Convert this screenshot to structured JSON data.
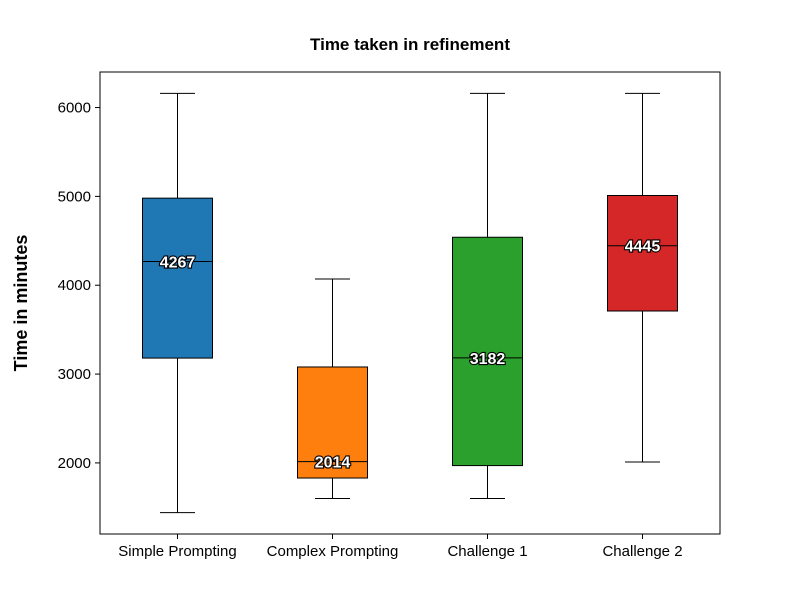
{
  "chart_data": {
    "type": "box",
    "title": "Time taken in refinement",
    "xlabel": "",
    "ylabel": "Time in minutes",
    "ylim": [
      1200,
      6400
    ],
    "yticks": [
      2000,
      3000,
      4000,
      5000,
      6000
    ],
    "grid": false,
    "categories": [
      "Simple Prompting",
      "Complex Prompting",
      "Challenge 1",
      "Challenge 2"
    ],
    "series": [
      {
        "category": "Simple Prompting",
        "min": 1440,
        "q1": 3180,
        "median": 4267,
        "q3": 4980,
        "max": 6160,
        "color": "#1f77b4",
        "median_label": "4267"
      },
      {
        "category": "Complex Prompting",
        "min": 1600,
        "q1": 1830,
        "median": 2014,
        "q3": 3080,
        "max": 4070,
        "color": "#ff7f0e",
        "median_label": "2014"
      },
      {
        "category": "Challenge 1",
        "min": 1600,
        "q1": 1970,
        "median": 3182,
        "q3": 4540,
        "max": 6160,
        "color": "#2ca02c",
        "median_label": "3182"
      },
      {
        "category": "Challenge 2",
        "min": 2010,
        "q1": 3710,
        "median": 4445,
        "q3": 5010,
        "max": 6160,
        "color": "#d62728",
        "median_label": "4445"
      }
    ]
  }
}
